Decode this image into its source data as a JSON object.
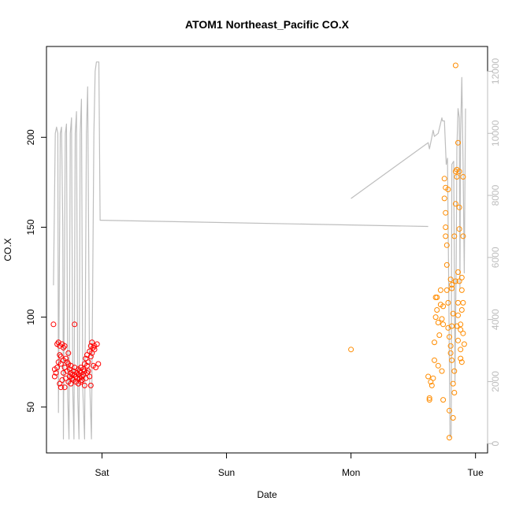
{
  "chart_data": {
    "type": "scatter",
    "title": "ATOM1 Northeast_Pacific CO.X",
    "xlabel": "Date",
    "ylabel": "CO.X",
    "x_unit": "days since Friday 00:00",
    "xlim": [
      0.554,
      4.097
    ],
    "ylim": [
      24.5,
      250.5
    ],
    "y2lim": [
      -300,
      12800
    ],
    "x_ticks": [
      {
        "label": "Sat",
        "value": 1
      },
      {
        "label": "Sun",
        "value": 2
      },
      {
        "label": "Mon",
        "value": 3
      },
      {
        "label": "Tue",
        "value": 4
      }
    ],
    "y_ticks": [
      50,
      100,
      150,
      200
    ],
    "y2_ticks": [
      0,
      2000,
      4000,
      6000,
      8000,
      10000,
      12000
    ],
    "colors": {
      "series1": "#ff0000",
      "series2": "#ff8c00",
      "line": "#bebebe",
      "right_axis": "#bdbdbd"
    },
    "series": [
      {
        "color": "#ff0000",
        "points": [
          [
            0.61,
            96
          ],
          [
            0.62,
            71
          ],
          [
            0.62,
            67
          ],
          [
            0.63,
            69
          ],
          [
            0.64,
            85
          ],
          [
            0.64,
            72
          ],
          [
            0.65,
            86
          ],
          [
            0.65,
            75
          ],
          [
            0.66,
            63
          ],
          [
            0.66,
            79
          ],
          [
            0.66,
            84
          ],
          [
            0.67,
            61
          ],
          [
            0.67,
            74
          ],
          [
            0.67,
            78
          ],
          [
            0.68,
            85
          ],
          [
            0.68,
            65
          ],
          [
            0.69,
            69
          ],
          [
            0.69,
            76
          ],
          [
            0.69,
            83
          ],
          [
            0.7,
            84
          ],
          [
            0.7,
            61
          ],
          [
            0.7,
            72
          ],
          [
            0.71,
            77
          ],
          [
            0.71,
            66
          ],
          [
            0.72,
            75
          ],
          [
            0.72,
            70
          ],
          [
            0.73,
            64
          ],
          [
            0.73,
            74
          ],
          [
            0.73,
            80
          ],
          [
            0.74,
            67
          ],
          [
            0.74,
            71
          ],
          [
            0.75,
            63
          ],
          [
            0.75,
            69
          ],
          [
            0.75,
            73
          ],
          [
            0.76,
            68
          ],
          [
            0.76,
            66
          ],
          [
            0.77,
            70
          ],
          [
            0.77,
            65
          ],
          [
            0.78,
            96
          ],
          [
            0.78,
            68
          ],
          [
            0.78,
            72
          ],
          [
            0.79,
            67
          ],
          [
            0.79,
            64
          ],
          [
            0.8,
            69
          ],
          [
            0.8,
            66
          ],
          [
            0.81,
            71
          ],
          [
            0.81,
            63
          ],
          [
            0.81,
            68
          ],
          [
            0.82,
            70
          ],
          [
            0.82,
            66
          ],
          [
            0.83,
            69
          ],
          [
            0.83,
            64
          ],
          [
            0.83,
            72
          ],
          [
            0.84,
            67
          ],
          [
            0.84,
            65
          ],
          [
            0.85,
            68
          ],
          [
            0.85,
            71
          ],
          [
            0.86,
            70
          ],
          [
            0.86,
            62
          ],
          [
            0.86,
            74
          ],
          [
            0.87,
            77
          ],
          [
            0.87,
            66
          ],
          [
            0.88,
            73
          ],
          [
            0.88,
            69
          ],
          [
            0.88,
            79
          ],
          [
            0.89,
            75
          ],
          [
            0.89,
            70
          ],
          [
            0.9,
            81
          ],
          [
            0.9,
            67
          ],
          [
            0.91,
            78
          ],
          [
            0.91,
            62
          ],
          [
            0.91,
            84
          ],
          [
            0.92,
            86
          ],
          [
            0.92,
            80
          ],
          [
            0.93,
            83
          ],
          [
            0.93,
            73
          ],
          [
            0.94,
            82
          ],
          [
            0.94,
            84
          ],
          [
            0.95,
            72
          ],
          [
            0.96,
            85
          ],
          [
            0.97,
            74
          ]
        ]
      },
      {
        "color": "#ff8c00",
        "points": [
          [
            3.0,
            82
          ],
          [
            3.62,
            67
          ],
          [
            3.63,
            55
          ],
          [
            3.63,
            54
          ],
          [
            3.64,
            64
          ],
          [
            3.65,
            62
          ],
          [
            3.66,
            66
          ],
          [
            3.67,
            76
          ],
          [
            3.67,
            86
          ],
          [
            3.68,
            100
          ],
          [
            3.68,
            111
          ],
          [
            3.69,
            104
          ],
          [
            3.69,
            111
          ],
          [
            3.7,
            73
          ],
          [
            3.7,
            97
          ],
          [
            3.71,
            90
          ],
          [
            3.72,
            107
          ],
          [
            3.72,
            115
          ],
          [
            3.73,
            70
          ],
          [
            3.73,
            99
          ],
          [
            3.74,
            96
          ],
          [
            3.74,
            106
          ],
          [
            3.74,
            54
          ],
          [
            3.75,
            177
          ],
          [
            3.75,
            166
          ],
          [
            3.76,
            158
          ],
          [
            3.76,
            145
          ],
          [
            3.76,
            150
          ],
          [
            3.76,
            172
          ],
          [
            3.77,
            115
          ],
          [
            3.77,
            140
          ],
          [
            3.77,
            129
          ],
          [
            3.78,
            171
          ],
          [
            3.78,
            108
          ],
          [
            3.78,
            94
          ],
          [
            3.79,
            89
          ],
          [
            3.79,
            48
          ],
          [
            3.79,
            33
          ],
          [
            3.8,
            121
          ],
          [
            3.8,
            84
          ],
          [
            3.8,
            80
          ],
          [
            3.81,
            116
          ],
          [
            3.81,
            76
          ],
          [
            3.81,
            118
          ],
          [
            3.81,
            95
          ],
          [
            3.82,
            63
          ],
          [
            3.82,
            44
          ],
          [
            3.82,
            102
          ],
          [
            3.83,
            70
          ],
          [
            3.83,
            58
          ],
          [
            3.83,
            145
          ],
          [
            3.84,
            163
          ],
          [
            3.84,
            120
          ],
          [
            3.84,
            240
          ],
          [
            3.84,
            181
          ],
          [
            3.85,
            178
          ],
          [
            3.85,
            182
          ],
          [
            3.85,
            95
          ],
          [
            3.86,
            197
          ],
          [
            3.86,
            125
          ],
          [
            3.86,
            108
          ],
          [
            3.86,
            101
          ],
          [
            3.86,
            87
          ],
          [
            3.87,
            161
          ],
          [
            3.87,
            149
          ],
          [
            3.87,
            120
          ],
          [
            3.87,
            181
          ],
          [
            3.88,
            96
          ],
          [
            3.88,
            93
          ],
          [
            3.88,
            82
          ],
          [
            3.88,
            77
          ],
          [
            3.89,
            115
          ],
          [
            3.89,
            122
          ],
          [
            3.89,
            104
          ],
          [
            3.89,
            75
          ],
          [
            3.9,
            108
          ],
          [
            3.9,
            91
          ],
          [
            3.9,
            178
          ],
          [
            3.9,
            145
          ],
          [
            3.91,
            85
          ]
        ]
      }
    ],
    "line": {
      "color": "#bebebe",
      "axis": "right",
      "segments": [
        [
          [
            0.61,
            5100
          ],
          [
            0.625,
            10000
          ],
          [
            0.635,
            10200
          ],
          [
            0.645,
            10000
          ],
          [
            0.65,
            1000
          ],
          [
            0.665,
            10000
          ],
          [
            0.675,
            10200
          ],
          [
            0.685,
            7000
          ],
          [
            0.69,
            150
          ],
          [
            0.705,
            10000
          ],
          [
            0.715,
            10300
          ],
          [
            0.725,
            1500
          ],
          [
            0.735,
            150
          ],
          [
            0.745,
            10000
          ],
          [
            0.755,
            10500
          ],
          [
            0.765,
            1700
          ],
          [
            0.775,
            150
          ],
          [
            0.785,
            10000
          ],
          [
            0.795,
            10700
          ],
          [
            0.805,
            1500
          ],
          [
            0.815,
            150
          ],
          [
            0.825,
            10000
          ],
          [
            0.835,
            11100
          ],
          [
            0.845,
            1800
          ],
          [
            0.86,
            150
          ],
          [
            0.875,
            10000
          ],
          [
            0.885,
            11500
          ],
          [
            0.9,
            2100
          ],
          [
            0.915,
            150
          ],
          [
            0.935,
            10000
          ],
          [
            0.945,
            12000
          ],
          [
            0.955,
            12300
          ],
          [
            0.975,
            12300
          ],
          [
            0.985,
            7200
          ],
          [
            0.995,
            7200
          ],
          [
            3.62,
            7000
          ]
        ],
        [
          [
            3.0,
            7900
          ],
          [
            3.62,
            9700
          ],
          [
            3.63,
            9500
          ],
          [
            3.645,
            9800
          ],
          [
            3.66,
            10100
          ],
          [
            3.67,
            9900
          ],
          [
            3.7,
            10000
          ],
          [
            3.73,
            10500
          ],
          [
            3.735,
            10400
          ],
          [
            3.75,
            10400
          ],
          [
            3.765,
            9000
          ],
          [
            3.775,
            9200
          ],
          [
            3.785,
            5000
          ],
          [
            3.795,
            200
          ],
          [
            3.805,
            300
          ],
          [
            3.81,
            9000
          ],
          [
            3.825,
            9100
          ],
          [
            3.835,
            2000
          ],
          [
            3.845,
            6000
          ],
          [
            3.85,
            9500
          ],
          [
            3.86,
            10800
          ],
          [
            3.87,
            10500
          ],
          [
            3.875,
            5000
          ],
          [
            3.88,
            10000
          ],
          [
            3.89,
            11800
          ],
          [
            3.9,
            9000
          ],
          [
            3.91,
            5500
          ],
          [
            3.92,
            10800
          ]
        ]
      ]
    }
  }
}
